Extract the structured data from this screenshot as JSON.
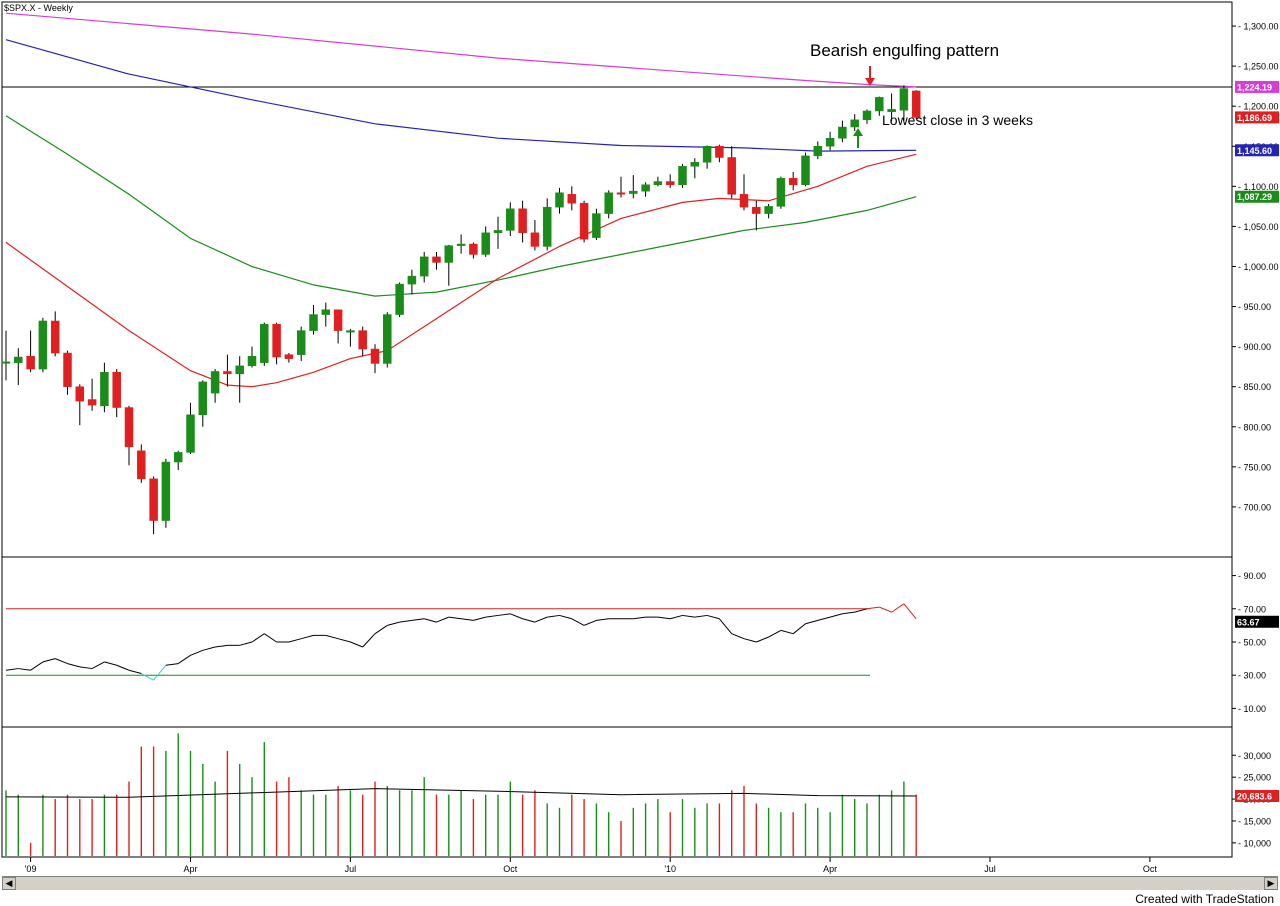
{
  "chart_title": "$SPX.X - Weekly",
  "credit": "Created with TradeStation",
  "annotations": {
    "pattern": "Bearish engulfing pattern",
    "close": "Lowest close in 3 weeks"
  },
  "colors": {
    "up": "#1a8c1a",
    "down": "#e02020",
    "ma_magenta": "#d63cd6",
    "ma_blue": "#2424b4",
    "ma_green": "#1a8c1a",
    "ma_red": "#e02020",
    "rsi": "#000000",
    "rsi_oversold": "#33cccc",
    "level_red": "#e02020",
    "level_green": "#1a8c1a",
    "arrow_red": "#e02020",
    "arrow_green": "#1a8c1a"
  },
  "chart_data": {
    "type": "candlestick",
    "x_labels": [
      {
        "label": "'09",
        "week": 2
      },
      {
        "label": "Apr",
        "week": 15
      },
      {
        "label": "Jul",
        "week": 28
      },
      {
        "label": "Oct",
        "week": 41
      },
      {
        "label": "'10",
        "week": 54
      },
      {
        "label": "Apr",
        "week": 67
      },
      {
        "label": "Jul",
        "week": 80
      },
      {
        "label": "Oct",
        "week": 93
      }
    ],
    "price_axis": {
      "ticks": [
        700,
        750,
        800,
        850,
        900,
        950,
        1000,
        1050,
        1100,
        1150,
        1200,
        1250,
        1300
      ],
      "ylim": [
        640,
        1325
      ]
    },
    "candles": [
      [
        880,
        881,
        858,
        920
      ],
      [
        880,
        887,
        852,
        898
      ],
      [
        888,
        872,
        868,
        920
      ],
      [
        872,
        932,
        868,
        936
      ],
      [
        932,
        892,
        888,
        944
      ],
      [
        892,
        850,
        840,
        895
      ],
      [
        850,
        832,
        802,
        853
      ],
      [
        834,
        827,
        820,
        860
      ],
      [
        826,
        868,
        818,
        880
      ],
      [
        868,
        824,
        812,
        872
      ],
      [
        824,
        775,
        752,
        826
      ],
      [
        770,
        735,
        730,
        778
      ],
      [
        735,
        683,
        666,
        738
      ],
      [
        683,
        756,
        674,
        760
      ],
      [
        756,
        768,
        746,
        770
      ],
      [
        768,
        815,
        766,
        830
      ],
      [
        815,
        856,
        800,
        858
      ],
      [
        842,
        869,
        830,
        872
      ],
      [
        869,
        866,
        850,
        890
      ],
      [
        866,
        876,
        830,
        888
      ],
      [
        876,
        888,
        874,
        900
      ],
      [
        880,
        928,
        876,
        930
      ],
      [
        928,
        887,
        878,
        930
      ],
      [
        890,
        885,
        880,
        892
      ],
      [
        890,
        920,
        882,
        925
      ],
      [
        920,
        940,
        915,
        952
      ],
      [
        940,
        946,
        925,
        955
      ],
      [
        946,
        920,
        904,
        946
      ],
      [
        918,
        920,
        900,
        922
      ],
      [
        920,
        897,
        888,
        925
      ],
      [
        897,
        879,
        867,
        903
      ],
      [
        879,
        940,
        874,
        943
      ],
      [
        940,
        978,
        937,
        980
      ],
      [
        978,
        988,
        965,
        996
      ],
      [
        988,
        1012,
        980,
        1018
      ],
      [
        1012,
        1005,
        996,
        1018
      ],
      [
        1005,
        1026,
        976,
        1027
      ],
      [
        1026,
        1028,
        1016,
        1040
      ],
      [
        1028,
        1015,
        1010,
        1030
      ],
      [
        1015,
        1042,
        1012,
        1050
      ],
      [
        1042,
        1045,
        1022,
        1062
      ],
      [
        1045,
        1072,
        1038,
        1080
      ],
      [
        1072,
        1042,
        1030,
        1082
      ],
      [
        1042,
        1025,
        1020,
        1058
      ],
      [
        1025,
        1074,
        1020,
        1085
      ],
      [
        1074,
        1092,
        1066,
        1098
      ],
      [
        1090,
        1079,
        1070,
        1100
      ],
      [
        1079,
        1034,
        1030,
        1082
      ],
      [
        1036,
        1066,
        1033,
        1072
      ],
      [
        1066,
        1092,
        1060,
        1095
      ],
      [
        1092,
        1091,
        1086,
        1112
      ],
      [
        1091,
        1094,
        1085,
        1114
      ],
      [
        1094,
        1102,
        1087,
        1105
      ],
      [
        1102,
        1106,
        1100,
        1112
      ],
      [
        1106,
        1102,
        1098,
        1115
      ],
      [
        1102,
        1125,
        1098,
        1128
      ],
      [
        1125,
        1130,
        1110,
        1135
      ],
      [
        1130,
        1150,
        1122,
        1151
      ],
      [
        1150,
        1136,
        1130,
        1152
      ],
      [
        1136,
        1090,
        1085,
        1150
      ],
      [
        1090,
        1074,
        1070,
        1115
      ],
      [
        1074,
        1066,
        1045,
        1082
      ],
      [
        1066,
        1075,
        1060,
        1078
      ],
      [
        1075,
        1110,
        1072,
        1112
      ],
      [
        1110,
        1102,
        1095,
        1118
      ],
      [
        1102,
        1138,
        1100,
        1142
      ],
      [
        1138,
        1150,
        1134,
        1156
      ],
      [
        1150,
        1160,
        1145,
        1168
      ],
      [
        1160,
        1174,
        1155,
        1182
      ],
      [
        1174,
        1183,
        1169,
        1190
      ],
      [
        1183,
        1194,
        1178,
        1196
      ],
      [
        1194,
        1211,
        1188,
        1212
      ],
      [
        1193,
        1196,
        1181,
        1216
      ],
      [
        1195,
        1222,
        1182,
        1226
      ],
      [
        1219,
        1186,
        1184,
        1220
      ]
    ],
    "moving_averages": [
      {
        "color_key": "ma_magenta",
        "points": [
          [
            0,
            1316
          ],
          [
            20,
            1290
          ],
          [
            40,
            1260
          ],
          [
            55,
            1243
          ],
          [
            65,
            1232
          ],
          [
            70,
            1227
          ],
          [
            74,
            1224
          ]
        ]
      },
      {
        "color_key": "ma_blue",
        "points": [
          [
            0,
            1283
          ],
          [
            10,
            1240
          ],
          [
            20,
            1208
          ],
          [
            30,
            1178
          ],
          [
            40,
            1160
          ],
          [
            50,
            1151
          ],
          [
            60,
            1148
          ],
          [
            66,
            1144
          ],
          [
            74,
            1145
          ]
        ]
      },
      {
        "color_key": "ma_green",
        "points": [
          [
            0,
            1188
          ],
          [
            5,
            1140
          ],
          [
            10,
            1090
          ],
          [
            15,
            1035
          ],
          [
            20,
            1000
          ],
          [
            25,
            977
          ],
          [
            30,
            963
          ],
          [
            35,
            968
          ],
          [
            40,
            983
          ],
          [
            45,
            1000
          ],
          [
            50,
            1015
          ],
          [
            55,
            1030
          ],
          [
            60,
            1045
          ],
          [
            65,
            1055
          ],
          [
            70,
            1070
          ],
          [
            74,
            1087
          ]
        ]
      },
      {
        "color_key": "ma_red",
        "points": [
          [
            0,
            1030
          ],
          [
            5,
            975
          ],
          [
            10,
            920
          ],
          [
            15,
            870
          ],
          [
            18,
            852
          ],
          [
            20,
            850
          ],
          [
            22,
            855
          ],
          [
            25,
            868
          ],
          [
            28,
            885
          ],
          [
            31,
            895
          ],
          [
            35,
            935
          ],
          [
            40,
            985
          ],
          [
            45,
            1025
          ],
          [
            50,
            1060
          ],
          [
            55,
            1080
          ],
          [
            58,
            1085
          ],
          [
            62,
            1082
          ],
          [
            66,
            1100
          ],
          [
            70,
            1125
          ],
          [
            74,
            1140
          ]
        ]
      }
    ],
    "last_values": [
      {
        "label": "1,224.19",
        "value": 1224,
        "color_key": "ma_magenta"
      },
      {
        "label": "1,186.69",
        "value": 1186,
        "color_key": "down"
      },
      {
        "label": "1,145.60",
        "value": 1145,
        "color_key": "ma_blue"
      },
      {
        "label": "1,087.29",
        "value": 1087,
        "color_key": "ma_green"
      }
    ],
    "resistance_level": 1224,
    "rsi": {
      "ticks": [
        10,
        30,
        50,
        70,
        90
      ],
      "ylim": [
        0,
        100
      ],
      "overbought": 70,
      "oversold": 30,
      "last_label": "63.67",
      "values": [
        33,
        34,
        33,
        38,
        40,
        37,
        35,
        34,
        38,
        36,
        33,
        31,
        27,
        36,
        37,
        42,
        45,
        47,
        48,
        48,
        50,
        55,
        50,
        50,
        52,
        54,
        54,
        52,
        50,
        47,
        55,
        60,
        62,
        63,
        64,
        62,
        65,
        64,
        63,
        65,
        66,
        67,
        64,
        62,
        65,
        66,
        64,
        60,
        63,
        64,
        64,
        64,
        65,
        65,
        64,
        66,
        65,
        66,
        64,
        55,
        52,
        50,
        53,
        57,
        55,
        61,
        63,
        65,
        67,
        68,
        70,
        71,
        68,
        73,
        64
      ]
    },
    "volume": {
      "ticks": [
        10000,
        15000,
        20000,
        25000,
        30000
      ],
      "tick_labels": [
        "10,000",
        "15,000",
        "20,000",
        "25,000",
        "30,000"
      ],
      "ylim": [
        7000,
        36000
      ],
      "last_label": "20,683.6",
      "values": [
        22000,
        21000,
        10000,
        21000,
        20000,
        21000,
        20000,
        20000,
        21000,
        21000,
        24000,
        32000,
        32000,
        31000,
        35000,
        31000,
        28000,
        24000,
        31000,
        28000,
        25000,
        33000,
        24000,
        25000,
        22000,
        21000,
        21000,
        23000,
        22000,
        21000,
        24000,
        23000,
        22000,
        22000,
        25000,
        21000,
        21000,
        22000,
        20000,
        21000,
        21000,
        24000,
        21000,
        22000,
        19000,
        18000,
        21000,
        20000,
        19000,
        17000,
        15000,
        18000,
        19000,
        20000,
        17000,
        20000,
        18000,
        19000,
        19000,
        22000,
        23000,
        19000,
        18000,
        17000,
        17000,
        19000,
        18000,
        17000,
        21000,
        20000,
        19000,
        21000,
        22000,
        24000,
        21000
      ],
      "ma": [
        [
          0,
          20500
        ],
        [
          10,
          20400
        ],
        [
          20,
          21400
        ],
        [
          30,
          22400
        ],
        [
          40,
          21800
        ],
        [
          50,
          21000
        ],
        [
          60,
          21300
        ],
        [
          66,
          20800
        ],
        [
          74,
          20700
        ]
      ]
    }
  }
}
